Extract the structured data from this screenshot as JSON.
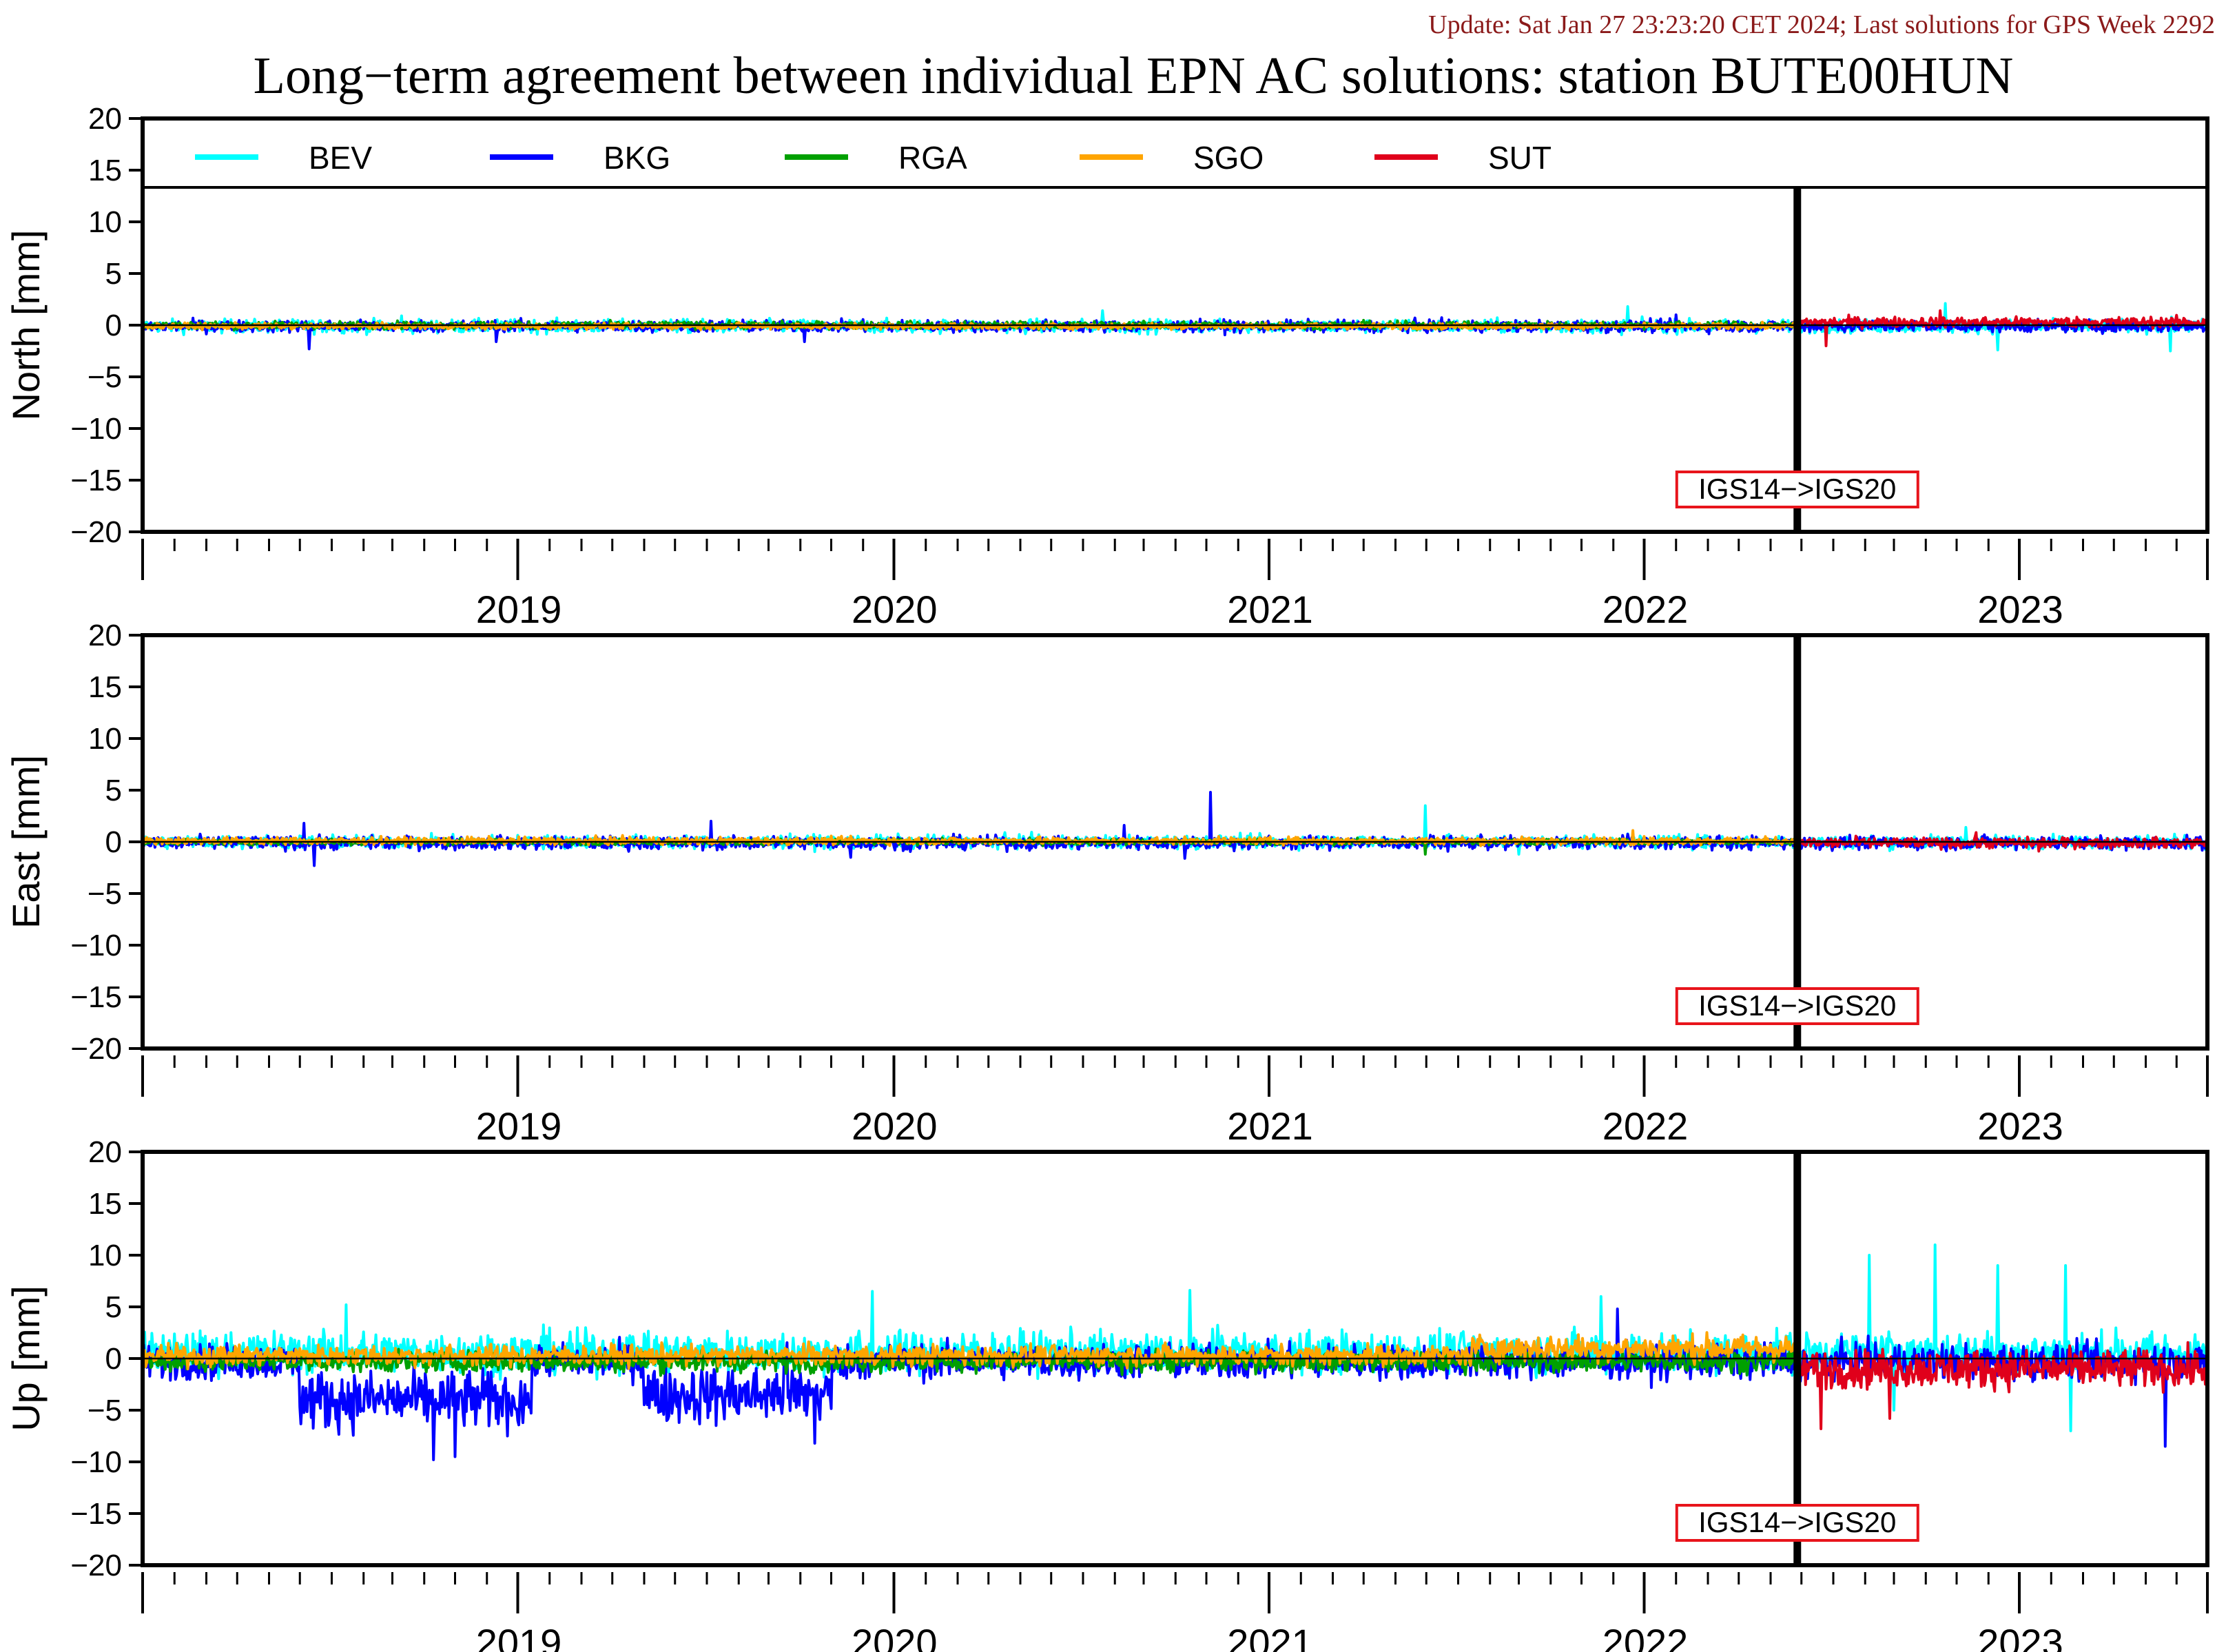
{
  "header": {
    "update_text": "Update: Sat Jan 27 23:23:20 CET 2024; Last solutions for GPS Week 2292",
    "update_color": "#8b1a1a",
    "title": "Long−term agreement between individual EPN AC solutions: station BUTE00HUN"
  },
  "colors": {
    "axis": "#000000",
    "frame_switch_border": "#e8141b"
  },
  "chart_data": [
    {
      "type": "line",
      "ylabel": "North [mm]",
      "ylim": [
        -20,
        20
      ],
      "yticks": [
        20,
        15,
        10,
        5,
        0,
        -5,
        -10,
        -15,
        -20
      ],
      "xlim": [
        "2018-07-01",
        "2023-12-31"
      ],
      "x_tick_labels": [
        "2019",
        "2020",
        "2021",
        "2022",
        "2023"
      ],
      "annotation": "IGS14−>IGS20",
      "vertical_line_date": "2022-11-27",
      "legend": [
        {
          "name": "BEV",
          "color": "#00ffff"
        },
        {
          "name": "BKG",
          "color": "#0000ff"
        },
        {
          "name": "RGA",
          "color": "#00a000"
        },
        {
          "name": "SGO",
          "color": "#ffa500"
        },
        {
          "name": "SUT",
          "color": "#e0001b"
        }
      ],
      "series": [
        {
          "name": "BEV",
          "color": "#00ffff",
          "range": [
            "2018-07-01",
            "2023-12-31"
          ],
          "level": -0.1,
          "noise": 0.45,
          "spikes": [
            [
              "2019-03-10",
              0.9
            ],
            [
              "2021-01-20",
              1.4
            ],
            [
              "2022-06-15",
              1.8
            ],
            [
              "2023-04-20",
              2.1
            ],
            [
              "2023-06-10",
              -2.4
            ],
            [
              "2023-11-25",
              -2.5
            ]
          ]
        },
        {
          "name": "BKG",
          "color": "#0000ff",
          "range": [
            "2018-07-01",
            "2023-12-31"
          ],
          "level": -0.1,
          "noise": 0.4,
          "spikes": [
            [
              "2018-12-10",
              -2.3
            ],
            [
              "2019-06-10",
              -1.6
            ],
            [
              "2020-04-05",
              -1.6
            ],
            [
              "2022-08-01",
              1.0
            ]
          ]
        },
        {
          "name": "RGA",
          "color": "#00a000",
          "range": [
            "2018-07-01",
            "2022-11-27"
          ],
          "level": 0.0,
          "noise": 0.25,
          "spikes": []
        },
        {
          "name": "SGO",
          "color": "#ffa500",
          "range": [
            "2018-07-01",
            "2022-11-27"
          ],
          "level": -0.1,
          "noise": 0.2,
          "spikes": []
        },
        {
          "name": "SUT",
          "color": "#e0001b",
          "range": [
            "2022-11-27",
            "2023-12-31"
          ],
          "level": 0.3,
          "noise": 0.35,
          "spikes": [
            [
              "2022-12-25",
              -2.0
            ],
            [
              "2023-04-15",
              1.4
            ]
          ]
        }
      ]
    },
    {
      "type": "line",
      "ylabel": "East [mm]",
      "ylim": [
        -20,
        20
      ],
      "yticks": [
        20,
        15,
        10,
        5,
        0,
        -5,
        -10,
        -15,
        -20
      ],
      "xlim": [
        "2018-07-01",
        "2023-12-31"
      ],
      "x_tick_labels": [
        "2019",
        "2020",
        "2021",
        "2022",
        "2023"
      ],
      "annotation": "IGS14−>IGS20",
      "vertical_line_date": "2022-11-27",
      "series": [
        {
          "name": "BEV",
          "color": "#00ffff",
          "range": [
            "2018-07-01",
            "2023-12-31"
          ],
          "level": 0.0,
          "noise": 0.45,
          "spikes": [
            [
              "2021-11-30",
              3.5
            ],
            [
              "2022-03-01",
              -1.2
            ],
            [
              "2023-05-10",
              1.4
            ]
          ]
        },
        {
          "name": "BKG",
          "color": "#0000ff",
          "range": [
            "2018-07-01",
            "2023-12-31"
          ],
          "level": -0.1,
          "noise": 0.45,
          "spikes": [
            [
              "2018-12-05",
              1.8
            ],
            [
              "2018-12-15",
              -2.3
            ],
            [
              "2020-01-05",
              2.0
            ],
            [
              "2020-05-20",
              -1.5
            ],
            [
              "2021-02-10",
              1.6
            ],
            [
              "2021-05-05",
              4.8
            ],
            [
              "2021-04-10",
              -1.6
            ]
          ]
        },
        {
          "name": "RGA",
          "color": "#00a000",
          "range": [
            "2018-07-01",
            "2022-11-27"
          ],
          "level": 0.0,
          "noise": 0.2,
          "spikes": [
            [
              "2021-11-30",
              -1.2
            ]
          ]
        },
        {
          "name": "SGO",
          "color": "#ffa500",
          "range": [
            "2018-07-01",
            "2022-11-27"
          ],
          "level": 0.1,
          "noise": 0.25,
          "spikes": [
            [
              "2022-06-20",
              1.1
            ]
          ]
        },
        {
          "name": "SUT",
          "color": "#e0001b",
          "range": [
            "2022-11-27",
            "2023-12-31"
          ],
          "level": -0.1,
          "noise": 0.35,
          "spikes": [
            [
              "2023-05-20",
              0.9
            ],
            [
              "2023-07-20",
              -0.9
            ]
          ]
        }
      ]
    },
    {
      "type": "line",
      "ylabel": "Up [mm]",
      "ylim": [
        -20,
        20
      ],
      "yticks": [
        20,
        15,
        10,
        5,
        0,
        -5,
        -10,
        -15,
        -20
      ],
      "xlim": [
        "2018-07-01",
        "2023-12-31"
      ],
      "x_tick_labels": [
        "2019",
        "2020",
        "2021",
        "2022",
        "2023"
      ],
      "annotation": "IGS14−>IGS20",
      "vertical_line_date": "2022-11-27",
      "series": [
        {
          "name": "BEV",
          "color": "#00ffff",
          "range": [
            "2018-07-01",
            "2023-12-31"
          ],
          "level": 0.6,
          "noise": 1.4,
          "spikes": [
            [
              "2019-01-15",
              5.2
            ],
            [
              "2020-06-10",
              6.5
            ],
            [
              "2021-04-15",
              6.6
            ],
            [
              "2022-05-20",
              6.0
            ],
            [
              "2023-02-05",
              10.0
            ],
            [
              "2023-04-10",
              11.0
            ],
            [
              "2023-06-10",
              9.0
            ],
            [
              "2023-08-15",
              9.0
            ],
            [
              "2023-03-01",
              -5.0
            ],
            [
              "2023-08-20",
              -7.0
            ]
          ]
        },
        {
          "name": "BKG",
          "color": "#0000ff",
          "range": [
            "2018-07-01",
            "2023-12-31"
          ],
          "level": -0.3,
          "noise": 1.2,
          "segments": [
            [
              "2018-12-01",
              "2019-07-15",
              -4.0,
              2.0
            ],
            [
              "2019-11-01",
              "2020-03-15",
              -3.5,
              2.0
            ],
            [
              "2020-03-20",
              "2020-05-01",
              -3.5,
              2.2
            ]
          ],
          "spikes": [
            [
              "2019-04-10",
              -9.8
            ],
            [
              "2019-05-01",
              -9.5
            ],
            [
              "2020-04-15",
              -8.2
            ],
            [
              "2022-06-05",
              4.8
            ],
            [
              "2023-11-20",
              -8.5
            ]
          ]
        },
        {
          "name": "RGA",
          "color": "#00a000",
          "range": [
            "2018-07-01",
            "2022-11-27"
          ],
          "level": -0.3,
          "noise": 0.7,
          "spikes": []
        },
        {
          "name": "SGO",
          "color": "#ffa500",
          "range": [
            "2018-07-01",
            "2022-11-27"
          ],
          "level": 0.3,
          "noise": 0.7,
          "segments": [
            [
              "2022-01-15",
              "2022-11-25",
              1.0,
              0.9
            ]
          ],
          "spikes": []
        },
        {
          "name": "SUT",
          "color": "#e0001b",
          "range": [
            "2022-11-27",
            "2023-12-31"
          ],
          "level": -1.0,
          "noise": 1.3,
          "spikes": [
            [
              "2022-12-20",
              -6.8
            ],
            [
              "2023-02-25",
              -5.8
            ]
          ]
        }
      ]
    }
  ]
}
